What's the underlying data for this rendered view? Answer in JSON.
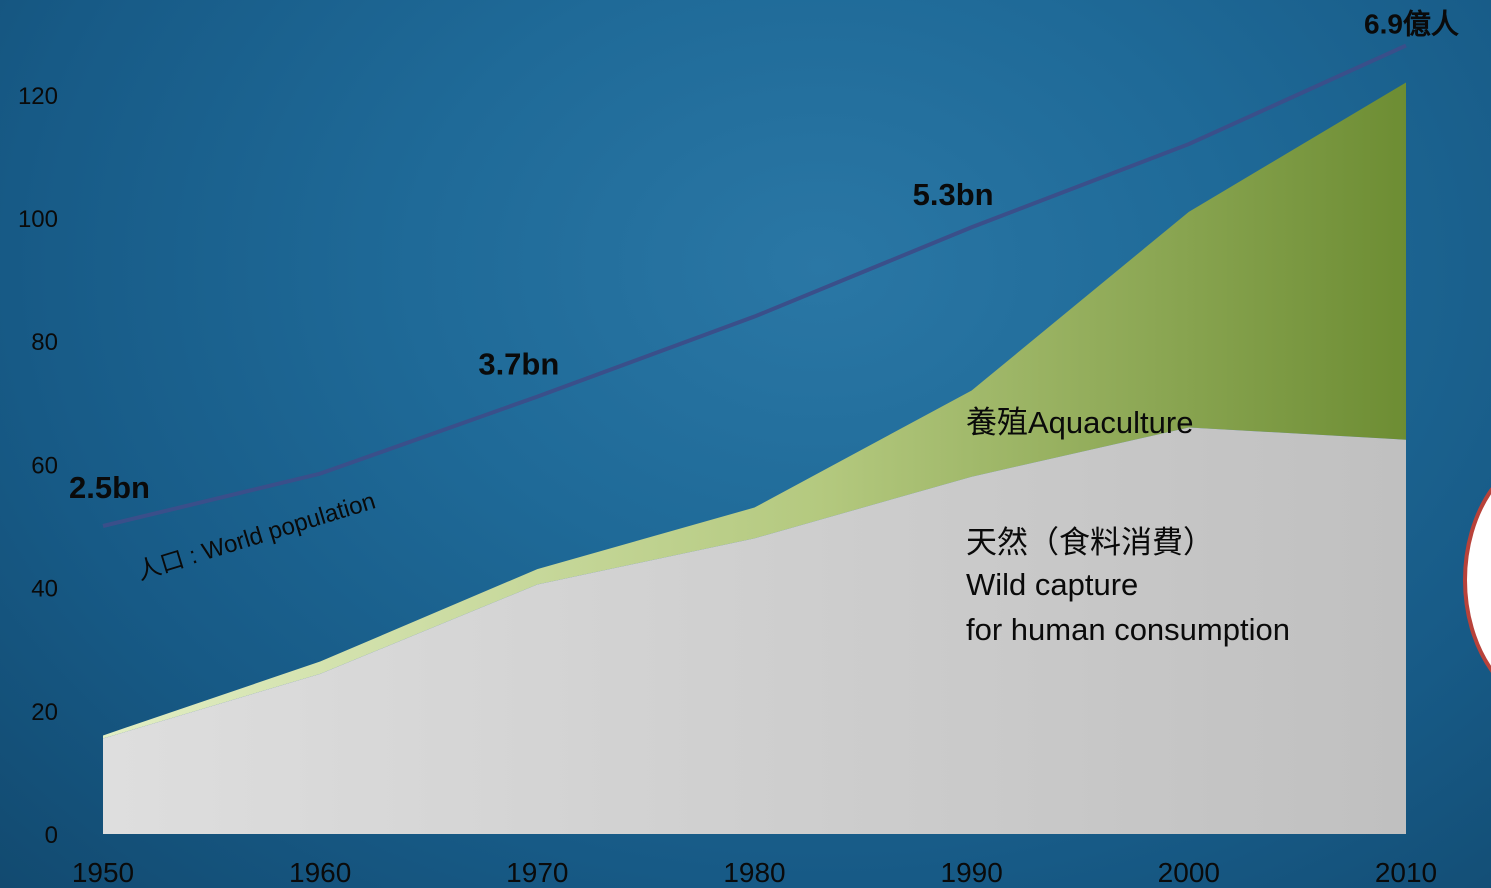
{
  "chart_data": {
    "type": "area",
    "title": "",
    "xlabel": "",
    "ylabel": "",
    "x": [
      1950,
      1960,
      1970,
      1980,
      1990,
      2000,
      2010
    ],
    "xlim": [
      1950,
      2010
    ],
    "ylim": [
      0,
      130
    ],
    "y_ticks": [
      "0",
      "20",
      "40",
      "60",
      "80",
      "100",
      "120"
    ],
    "x_ticks": [
      "1950",
      "1960",
      "1970",
      "1980",
      "1990",
      "2000",
      "2010"
    ],
    "stacked": true,
    "series": [
      {
        "name": "天然（食料消費） Wild capture for human consumption",
        "values": [
          15.5,
          26,
          40.5,
          48,
          58,
          66,
          64
        ],
        "color": "#c9c9c9"
      },
      {
        "name": "養殖Aquaculture",
        "values": [
          0.5,
          2,
          2.5,
          5,
          14,
          35,
          58
        ],
        "color": "#8fab5a"
      },
      {
        "name": "人口 : World population",
        "type": "line",
        "values": [
          50,
          58.5,
          71,
          84,
          98.5,
          112,
          128
        ],
        "color": "#3a4f8a"
      }
    ],
    "annotations": [
      {
        "text": "2.5bn",
        "x": 1950,
        "y": 50
      },
      {
        "text": "3.7bn",
        "x": 1970,
        "y": 71
      },
      {
        "text": "5.3bn",
        "x": 1990,
        "y": 98.5
      },
      {
        "text": "6.9億人",
        "x": 2010,
        "y": 128
      }
    ],
    "labels": {
      "aquaculture": "養殖Aquaculture",
      "wild_line1": "天然（食料消費）",
      "wild_line2": "Wild capture",
      "wild_line3": "for human consumption",
      "population": "人口 : World population"
    }
  },
  "colors": {
    "wild_fill": "#c9c9c9",
    "aqua_fill_start": "#dbe9b8",
    "aqua_fill_end": "#6f8f35",
    "population_line": "#3a4f8a",
    "callout_stroke": "#b8423a"
  }
}
